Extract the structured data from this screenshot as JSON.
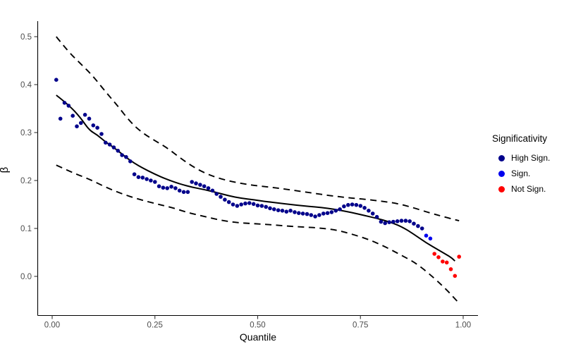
{
  "figure": {
    "background": "#FFFFFF",
    "axis_line_color": "#000000",
    "tick_mark_color": "#333333",
    "tick_label_color": "#4D4D4D"
  },
  "chart_data": {
    "type": "scatter",
    "title": "",
    "xlabel": "Quantile",
    "ylabel": "β",
    "xlim": [
      0,
      1
    ],
    "ylim": [
      -0.06,
      0.52
    ],
    "grid": false,
    "x_ticks": {
      "values": [
        0,
        0.25,
        0.5,
        0.75,
        1.0
      ],
      "labels": [
        "0.00",
        "0.25",
        "0.50",
        "0.75",
        "1.00"
      ]
    },
    "y_ticks": {
      "values": [
        0,
        0.1,
        0.2,
        0.3,
        0.4,
        0.5
      ],
      "labels": [
        "0.0",
        "0.1",
        "0.2",
        "0.3",
        "0.4",
        "0.5"
      ]
    },
    "legend": {
      "title": "Significativity",
      "position": "right",
      "items": [
        {
          "label": "High Sign.",
          "color": "#00008B"
        },
        {
          "label": "Sign.",
          "color": "#0000EE"
        },
        {
          "label": "Not Sign.",
          "color": "#FF0000"
        }
      ]
    },
    "series": [
      {
        "name": "High Sign.",
        "color": "#00008B",
        "marker": "circle",
        "points": [
          [
            0.01,
            0.41
          ],
          [
            0.02,
            0.329
          ],
          [
            0.03,
            0.362
          ],
          [
            0.04,
            0.356
          ],
          [
            0.05,
            0.335
          ],
          [
            0.06,
            0.313
          ],
          [
            0.07,
            0.32
          ],
          [
            0.08,
            0.337
          ],
          [
            0.09,
            0.329
          ],
          [
            0.1,
            0.315
          ],
          [
            0.11,
            0.31
          ],
          [
            0.12,
            0.297
          ],
          [
            0.13,
            0.279
          ],
          [
            0.14,
            0.275
          ],
          [
            0.15,
            0.269
          ],
          [
            0.16,
            0.262
          ],
          [
            0.17,
            0.253
          ],
          [
            0.18,
            0.249
          ],
          [
            0.19,
            0.24
          ],
          [
            0.2,
            0.213
          ],
          [
            0.21,
            0.207
          ],
          [
            0.22,
            0.206
          ],
          [
            0.23,
            0.203
          ],
          [
            0.24,
            0.2
          ],
          [
            0.25,
            0.197
          ],
          [
            0.26,
            0.188
          ],
          [
            0.27,
            0.185
          ],
          [
            0.28,
            0.184
          ],
          [
            0.29,
            0.187
          ],
          [
            0.3,
            0.184
          ],
          [
            0.31,
            0.179
          ],
          [
            0.32,
            0.176
          ],
          [
            0.33,
            0.176
          ],
          [
            0.34,
            0.197
          ],
          [
            0.35,
            0.194
          ],
          [
            0.36,
            0.191
          ],
          [
            0.37,
            0.188
          ],
          [
            0.38,
            0.184
          ],
          [
            0.39,
            0.179
          ],
          [
            0.4,
            0.172
          ],
          [
            0.41,
            0.166
          ],
          [
            0.42,
            0.16
          ],
          [
            0.43,
            0.155
          ],
          [
            0.44,
            0.15
          ],
          [
            0.45,
            0.147
          ],
          [
            0.46,
            0.15
          ],
          [
            0.47,
            0.152
          ],
          [
            0.48,
            0.153
          ],
          [
            0.49,
            0.151
          ],
          [
            0.5,
            0.148
          ],
          [
            0.51,
            0.147
          ],
          [
            0.52,
            0.145
          ],
          [
            0.53,
            0.142
          ],
          [
            0.54,
            0.14
          ],
          [
            0.55,
            0.138
          ],
          [
            0.56,
            0.137
          ],
          [
            0.57,
            0.135
          ],
          [
            0.58,
            0.137
          ],
          [
            0.59,
            0.134
          ],
          [
            0.6,
            0.132
          ],
          [
            0.61,
            0.131
          ],
          [
            0.62,
            0.13
          ],
          [
            0.63,
            0.128
          ],
          [
            0.64,
            0.125
          ],
          [
            0.65,
            0.128
          ],
          [
            0.66,
            0.131
          ],
          [
            0.67,
            0.132
          ],
          [
            0.68,
            0.134
          ],
          [
            0.69,
            0.137
          ],
          [
            0.7,
            0.14
          ],
          [
            0.71,
            0.146
          ],
          [
            0.72,
            0.149
          ],
          [
            0.73,
            0.15
          ],
          [
            0.74,
            0.149
          ],
          [
            0.75,
            0.147
          ],
          [
            0.76,
            0.143
          ],
          [
            0.77,
            0.137
          ],
          [
            0.78,
            0.131
          ],
          [
            0.79,
            0.124
          ],
          [
            0.8,
            0.114
          ],
          [
            0.81,
            0.111
          ],
          [
            0.82,
            0.113
          ],
          [
            0.83,
            0.114
          ],
          [
            0.84,
            0.115
          ],
          [
            0.85,
            0.116
          ],
          [
            0.86,
            0.116
          ],
          [
            0.87,
            0.115
          ],
          [
            0.88,
            0.11
          ],
          [
            0.89,
            0.105
          ],
          [
            0.9,
            0.1
          ]
        ]
      },
      {
        "name": "Sign.",
        "color": "#0000EE",
        "marker": "circle",
        "points": [
          [
            0.91,
            0.085
          ],
          [
            0.92,
            0.079
          ]
        ]
      },
      {
        "name": "Not Sign.",
        "color": "#FF0000",
        "marker": "circle",
        "points": [
          [
            0.93,
            0.047
          ],
          [
            0.94,
            0.04
          ],
          [
            0.95,
            0.031
          ],
          [
            0.96,
            0.029
          ],
          [
            0.97,
            0.015
          ],
          [
            0.98,
            0.001
          ],
          [
            0.99,
            0.041
          ]
        ]
      }
    ],
    "curves": [
      {
        "name": "loess-fit",
        "style": "solid",
        "color": "#000000",
        "points": [
          [
            0.01,
            0.378
          ],
          [
            0.04,
            0.358
          ],
          [
            0.07,
            0.33
          ],
          [
            0.09,
            0.305
          ],
          [
            0.11,
            0.295
          ],
          [
            0.13,
            0.28
          ],
          [
            0.15,
            0.269
          ],
          [
            0.18,
            0.248
          ],
          [
            0.2,
            0.236
          ],
          [
            0.22,
            0.226
          ],
          [
            0.25,
            0.213
          ],
          [
            0.28,
            0.202
          ],
          [
            0.31,
            0.193
          ],
          [
            0.34,
            0.186
          ],
          [
            0.37,
            0.181
          ],
          [
            0.4,
            0.175
          ],
          [
            0.43,
            0.168
          ],
          [
            0.46,
            0.163
          ],
          [
            0.49,
            0.16
          ],
          [
            0.52,
            0.156
          ],
          [
            0.55,
            0.153
          ],
          [
            0.58,
            0.15
          ],
          [
            0.61,
            0.147
          ],
          [
            0.64,
            0.145
          ],
          [
            0.67,
            0.142
          ],
          [
            0.7,
            0.138
          ],
          [
            0.73,
            0.133
          ],
          [
            0.76,
            0.127
          ],
          [
            0.79,
            0.121
          ],
          [
            0.82,
            0.114
          ],
          [
            0.85,
            0.104
          ],
          [
            0.88,
            0.088
          ],
          [
            0.91,
            0.07
          ],
          [
            0.94,
            0.055
          ],
          [
            0.97,
            0.04
          ],
          [
            0.98,
            0.032
          ]
        ]
      },
      {
        "name": "upper-confidence-band",
        "style": "dashed",
        "color": "#000000",
        "points": [
          [
            0.01,
            0.5
          ],
          [
            0.04,
            0.468
          ],
          [
            0.07,
            0.443
          ],
          [
            0.1,
            0.417
          ],
          [
            0.13,
            0.385
          ],
          [
            0.16,
            0.355
          ],
          [
            0.19,
            0.322
          ],
          [
            0.22,
            0.299
          ],
          [
            0.25,
            0.283
          ],
          [
            0.28,
            0.268
          ],
          [
            0.31,
            0.248
          ],
          [
            0.34,
            0.23
          ],
          [
            0.37,
            0.216
          ],
          [
            0.4,
            0.206
          ],
          [
            0.44,
            0.197
          ],
          [
            0.48,
            0.191
          ],
          [
            0.52,
            0.187
          ],
          [
            0.56,
            0.183
          ],
          [
            0.6,
            0.178
          ],
          [
            0.64,
            0.173
          ],
          [
            0.68,
            0.168
          ],
          [
            0.72,
            0.164
          ],
          [
            0.76,
            0.161
          ],
          [
            0.8,
            0.157
          ],
          [
            0.84,
            0.152
          ],
          [
            0.88,
            0.143
          ],
          [
            0.92,
            0.132
          ],
          [
            0.95,
            0.125
          ],
          [
            0.99,
            0.116
          ]
        ]
      },
      {
        "name": "lower-confidence-band",
        "style": "dashed",
        "color": "#000000",
        "points": [
          [
            0.01,
            0.232
          ],
          [
            0.05,
            0.216
          ],
          [
            0.09,
            0.203
          ],
          [
            0.13,
            0.186
          ],
          [
            0.17,
            0.172
          ],
          [
            0.21,
            0.161
          ],
          [
            0.25,
            0.152
          ],
          [
            0.29,
            0.144
          ],
          [
            0.33,
            0.133
          ],
          [
            0.37,
            0.125
          ],
          [
            0.41,
            0.117
          ],
          [
            0.45,
            0.112
          ],
          [
            0.49,
            0.11
          ],
          [
            0.53,
            0.108
          ],
          [
            0.57,
            0.105
          ],
          [
            0.61,
            0.103
          ],
          [
            0.65,
            0.101
          ],
          [
            0.69,
            0.097
          ],
          [
            0.73,
            0.088
          ],
          [
            0.77,
            0.077
          ],
          [
            0.81,
            0.062
          ],
          [
            0.85,
            0.044
          ],
          [
            0.89,
            0.025
          ],
          [
            0.93,
            -0.004
          ],
          [
            0.96,
            -0.028
          ],
          [
            0.99,
            -0.056
          ]
        ]
      }
    ]
  }
}
